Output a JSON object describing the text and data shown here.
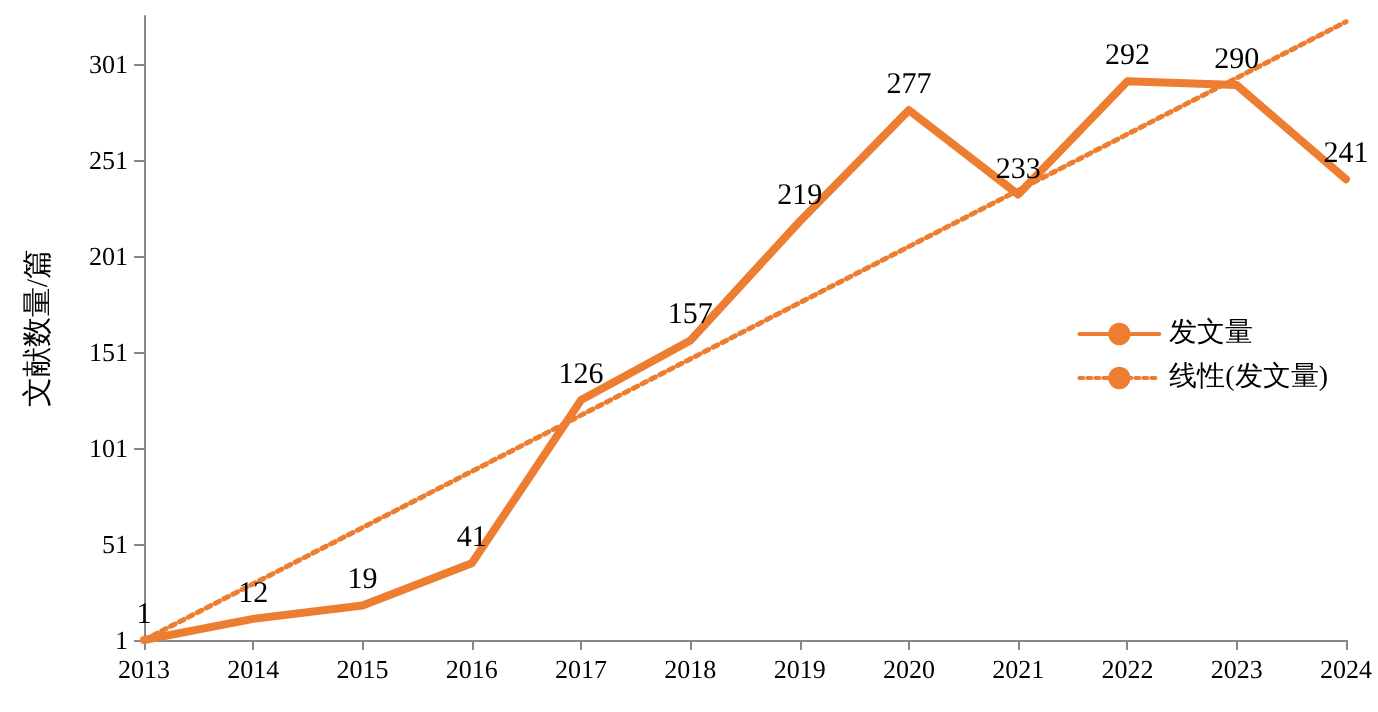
{
  "chart_data": {
    "type": "line",
    "ylabel": "文献数量/篇",
    "categories": [
      "2013",
      "2014",
      "2015",
      "2016",
      "2017",
      "2018",
      "2019",
      "2020",
      "2021",
      "2022",
      "2023",
      "2024"
    ],
    "series": [
      {
        "name": "发文量",
        "color": "#ed7d31",
        "values": [
          1,
          12,
          19,
          41,
          126,
          157,
          219,
          277,
          233,
          292,
          290,
          241
        ],
        "data_labels": true,
        "line_style": "solid"
      },
      {
        "name": "线性(发文量)",
        "color": "#ed7d31",
        "type": "line",
        "values": [
          1,
          null,
          null,
          null,
          null,
          null,
          null,
          null,
          null,
          null,
          null,
          323
        ],
        "line_style": "dotted"
      }
    ],
    "ylim": [
      1,
      326
    ],
    "yticks": [
      1,
      51,
      101,
      151,
      201,
      251,
      301
    ],
    "grid": false,
    "legend": "right"
  }
}
